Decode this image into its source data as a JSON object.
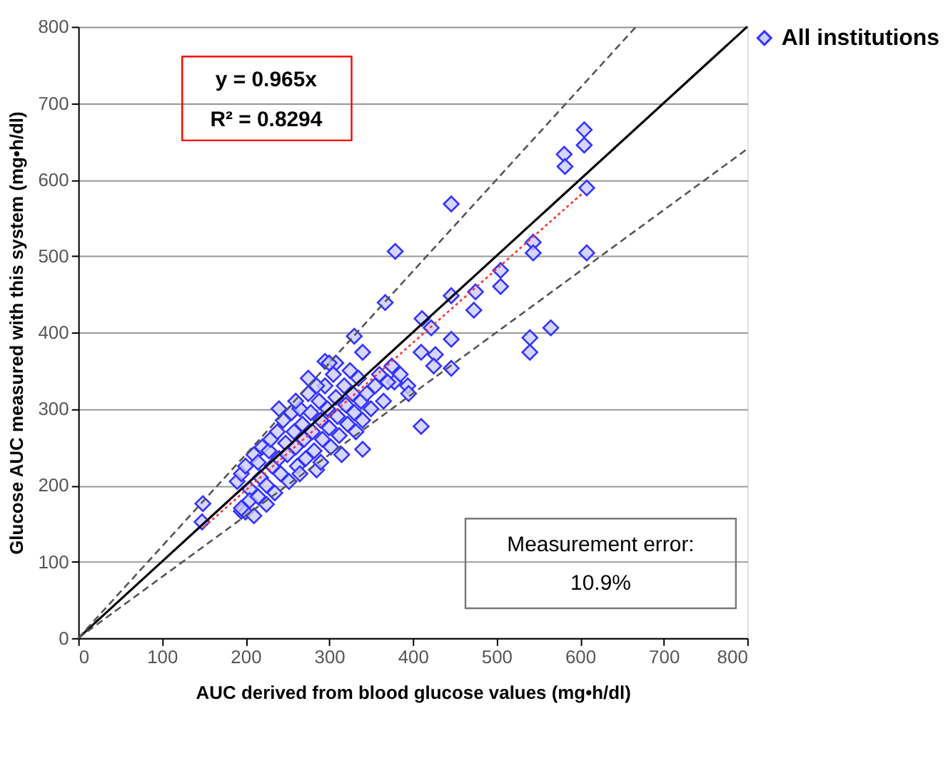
{
  "chart_data": {
    "type": "scatter",
    "xlabel": "AUC derived from blood glucose values (mg•h/dl)",
    "ylabel": "Glucose AUC measured with this system (mg•h/dl)",
    "xlim": [
      0,
      800
    ],
    "ylim": [
      0,
      800
    ],
    "xticks": [
      0,
      100,
      200,
      300,
      400,
      500,
      600,
      700,
      800
    ],
    "yticks": [
      0,
      100,
      200,
      300,
      400,
      500,
      600,
      700,
      800
    ],
    "grid": "y",
    "legend": "right",
    "annotations": [
      "y = 0.965x",
      "R² = 0.8294",
      "Measurement error:",
      "10.9%"
    ],
    "series": [
      {
        "name": "All institutions",
        "marker": "diamond",
        "color": "#3333ff",
        "x": [
          149,
          148,
          195,
          605,
          605,
          581,
          582,
          608,
          544,
          544,
          608,
          505,
          505,
          565,
          540,
          540,
          379,
          446,
          367,
          330,
          340,
          411,
          422,
          446,
          475,
          473,
          446,
          410,
          427,
          446,
          425,
          394,
          375,
          378,
          410,
          340,
          295,
          308,
          190,
          195,
          200,
          205,
          210,
          215,
          218,
          220,
          225,
          228,
          230,
          232,
          235,
          238,
          240,
          242,
          245,
          248,
          250,
          252,
          255,
          258,
          260,
          262,
          265,
          268,
          270,
          272,
          275,
          278,
          280,
          282,
          285,
          288,
          290,
          292,
          295,
          298,
          300,
          302,
          305,
          308,
          310,
          312,
          315,
          318,
          320,
          322,
          325,
          328,
          330,
          332,
          335,
          338,
          340,
          345,
          350,
          355,
          360,
          365,
          370,
          385,
          395,
          260,
          275,
          300,
          285,
          240,
          265,
          290,
          200,
          205,
          215,
          225,
          195,
          210
        ],
        "values": [
          176,
          152,
          166,
          665,
          645,
          633,
          617,
          589,
          518,
          504,
          504,
          481,
          460,
          406,
          393,
          374,
          506,
          568,
          439,
          395,
          374,
          418,
          406,
          448,
          453,
          429,
          391,
          374,
          371,
          353,
          356,
          330,
          356,
          335,
          277,
          247,
          362,
          360,
          205,
          215,
          225,
          195,
          240,
          230,
          210,
          250,
          200,
          245,
          260,
          225,
          190,
          270,
          235,
          215,
          285,
          255,
          240,
          205,
          295,
          270,
          250,
          225,
          300,
          280,
          260,
          235,
          320,
          295,
          270,
          245,
          220,
          310,
          285,
          260,
          330,
          300,
          275,
          250,
          345,
          315,
          290,
          265,
          240,
          330,
          305,
          280,
          350,
          320,
          295,
          270,
          340,
          310,
          285,
          320,
          300,
          330,
          345,
          310,
          335,
          345,
          320,
          310,
          340,
          360,
          330,
          300,
          215,
          230,
          165,
          180,
          185,
          175,
          170,
          160
        ]
      },
      {
        "type": "line",
        "marker": "none",
        "line_style": "solid",
        "color": "#000000",
        "x": [
          0,
          800
        ],
        "values": [
          0,
          800
        ]
      },
      {
        "type": "line",
        "marker": "none",
        "line_style": "dashed",
        "color": "#555555",
        "x": [
          0,
          667
        ],
        "values": [
          0,
          800
        ]
      },
      {
        "type": "line",
        "marker": "none",
        "line_style": "dashed",
        "color": "#555555",
        "x": [
          0,
          800
        ],
        "values": [
          0,
          640
        ]
      },
      {
        "type": "line",
        "marker": "none",
        "line_style": "dotted",
        "color": "#ff3333",
        "x": [
          150,
          605
        ],
        "values": [
          145,
          584
        ]
      }
    ]
  }
}
